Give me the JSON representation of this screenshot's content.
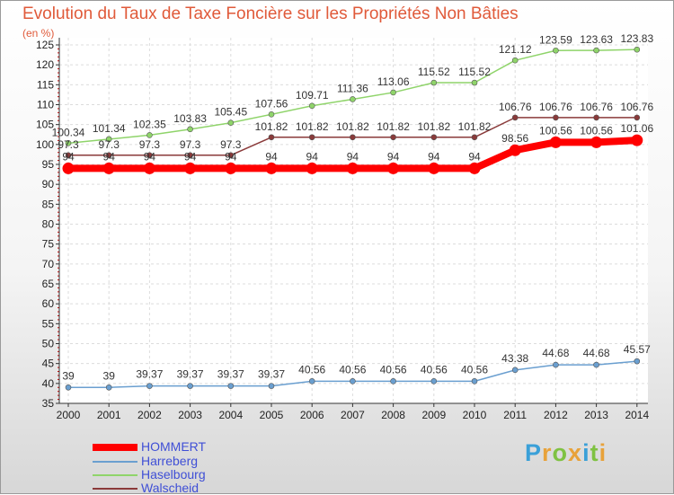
{
  "chart_data": {
    "type": "line",
    "title": "Evolution du Taux de Taxe Foncière sur les Propriétés Non Bâties",
    "ylabel": "(en %)",
    "xlabel": "",
    "x": [
      "2000",
      "2001",
      "2002",
      "2003",
      "2004",
      "2005",
      "2006",
      "2007",
      "2008",
      "2009",
      "2010",
      "2011",
      "2012",
      "2013",
      "2014"
    ],
    "ylim": [
      35,
      125
    ],
    "yticks": [
      35,
      40,
      45,
      50,
      55,
      60,
      65,
      70,
      75,
      80,
      85,
      90,
      95,
      100,
      105,
      110,
      115,
      120,
      125
    ],
    "grid": true,
    "legend_position": "bottom-left",
    "series": [
      {
        "name": "HOMMERT",
        "color": "#ff0000",
        "values": [
          94,
          94,
          94,
          94,
          94,
          94,
          94,
          94,
          94,
          94,
          94,
          98.56,
          100.56,
          100.56,
          101.06
        ],
        "labels": [
          "94",
          "94",
          "94",
          "94",
          "94",
          "94",
          "94",
          "94",
          "94",
          "94",
          "94",
          "98.56",
          "100.56",
          "100.56",
          "101.06"
        ]
      },
      {
        "name": "Harreberg",
        "color": "#6a9fd0",
        "values": [
          39,
          39,
          39.37,
          39.37,
          39.37,
          39.37,
          40.56,
          40.56,
          40.56,
          40.56,
          40.56,
          43.38,
          44.68,
          44.68,
          45.57
        ],
        "labels": [
          "39",
          "39",
          "39.37",
          "39.37",
          "39.37",
          "39.37",
          "40.56",
          "40.56",
          "40.56",
          "40.56",
          "40.56",
          "43.38",
          "44.68",
          "44.68",
          "45.57"
        ]
      },
      {
        "name": "Haselbourg",
        "color": "#8fd46a",
        "values": [
          100.34,
          101.34,
          102.35,
          103.83,
          105.45,
          107.56,
          109.71,
          111.36,
          113.06,
          115.52,
          115.52,
          121.12,
          123.59,
          123.63,
          123.83
        ],
        "labels": [
          "100.34",
          "101.34",
          "102.35",
          "103.83",
          "105.45",
          "107.56",
          "109.71",
          "111.36",
          "113.06",
          "115.52",
          "115.52",
          "121.12",
          "123.59",
          "123.63",
          "123.83"
        ]
      },
      {
        "name": "Walscheid",
        "color": "#8a3a3a",
        "values": [
          97.3,
          97.3,
          97.3,
          97.3,
          97.3,
          101.82,
          101.82,
          101.82,
          101.82,
          101.82,
          101.82,
          106.76,
          106.76,
          106.76,
          106.76
        ],
        "labels": [
          "97.3",
          "97.3",
          "97.3",
          "97.3",
          "97.3",
          "101.82",
          "101.82",
          "101.82",
          "101.82",
          "101.82",
          "101.82",
          "106.76",
          "106.76",
          "106.76",
          "106.76"
        ]
      }
    ]
  },
  "brand": {
    "letters": [
      "P",
      "r",
      "o",
      "x",
      "i",
      "t",
      "i"
    ],
    "colors": [
      "#3aa0d8",
      "#e8a23a",
      "#7fc242",
      "#e8a23a",
      "#3aa0d8",
      "#7fc242",
      "#e8a23a"
    ]
  }
}
